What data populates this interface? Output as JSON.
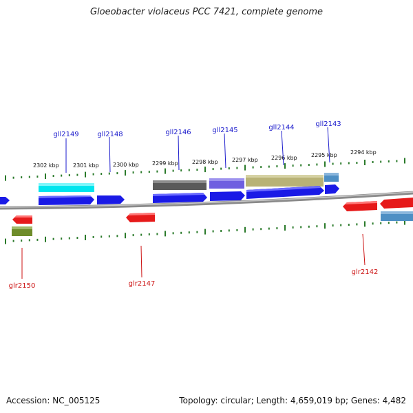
{
  "title": "Gloeobacter violaceus PCC 7421, complete genome",
  "footer": {
    "accession": "Accession: NC_005125",
    "summary": "Topology: circular; Length: 4,659,019 bp; Genes: 4,482"
  },
  "colors": {
    "upper_label": "#1a1acc",
    "lower_label": "#cc1111",
    "tick": "#2a7a2a",
    "backbone": "#8a8a8a",
    "blue": "#1a1ae6",
    "red": "#e61a1a"
  },
  "tick_labels": [
    "2302 kbp",
    "2301 kbp",
    "2300 kbp",
    "2299 kbp",
    "2298 kbp",
    "2297 kbp",
    "2296 kbp",
    "2295 kbp",
    "2294 kbp"
  ],
  "genes_upper": [
    {
      "name": "gll2149"
    },
    {
      "name": "gll2148"
    },
    {
      "name": "gll2146"
    },
    {
      "name": "gll2145"
    },
    {
      "name": "gll2144"
    },
    {
      "name": "gll2143"
    }
  ],
  "genes_lower": [
    {
      "name": "glr2150"
    },
    {
      "name": "glr2147"
    },
    {
      "name": "glr2142"
    }
  ]
}
